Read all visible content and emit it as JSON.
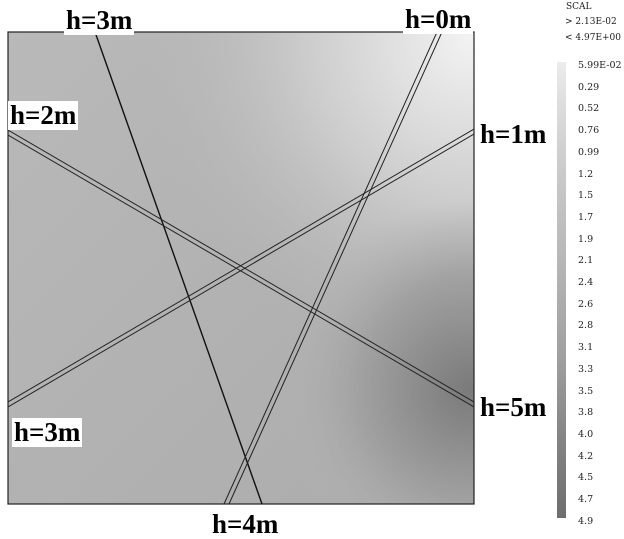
{
  "labels": {
    "top_left": "h=3m",
    "top_right": "h=0m",
    "left_upper": "h=2m",
    "right_upper": "h=1m",
    "left_lower": "h=3m",
    "right_lower": "h=5m",
    "bottom": "h=4m"
  },
  "scale": {
    "title": "SCAL",
    "max_line": "> 2.13E-02",
    "min_line": "< 4.97E+00",
    "ticks": [
      "5.99E-02",
      "0.29",
      "0.52",
      "0.76",
      "0.99",
      "1.2",
      "1.5",
      "1.7",
      "1.9",
      "2.1",
      "2.4",
      "2.6",
      "2.8",
      "3.1",
      "3.3",
      "3.5",
      "3.8",
      "4.0",
      "4.2",
      "4.5",
      "4.7",
      "4.9"
    ]
  }
}
